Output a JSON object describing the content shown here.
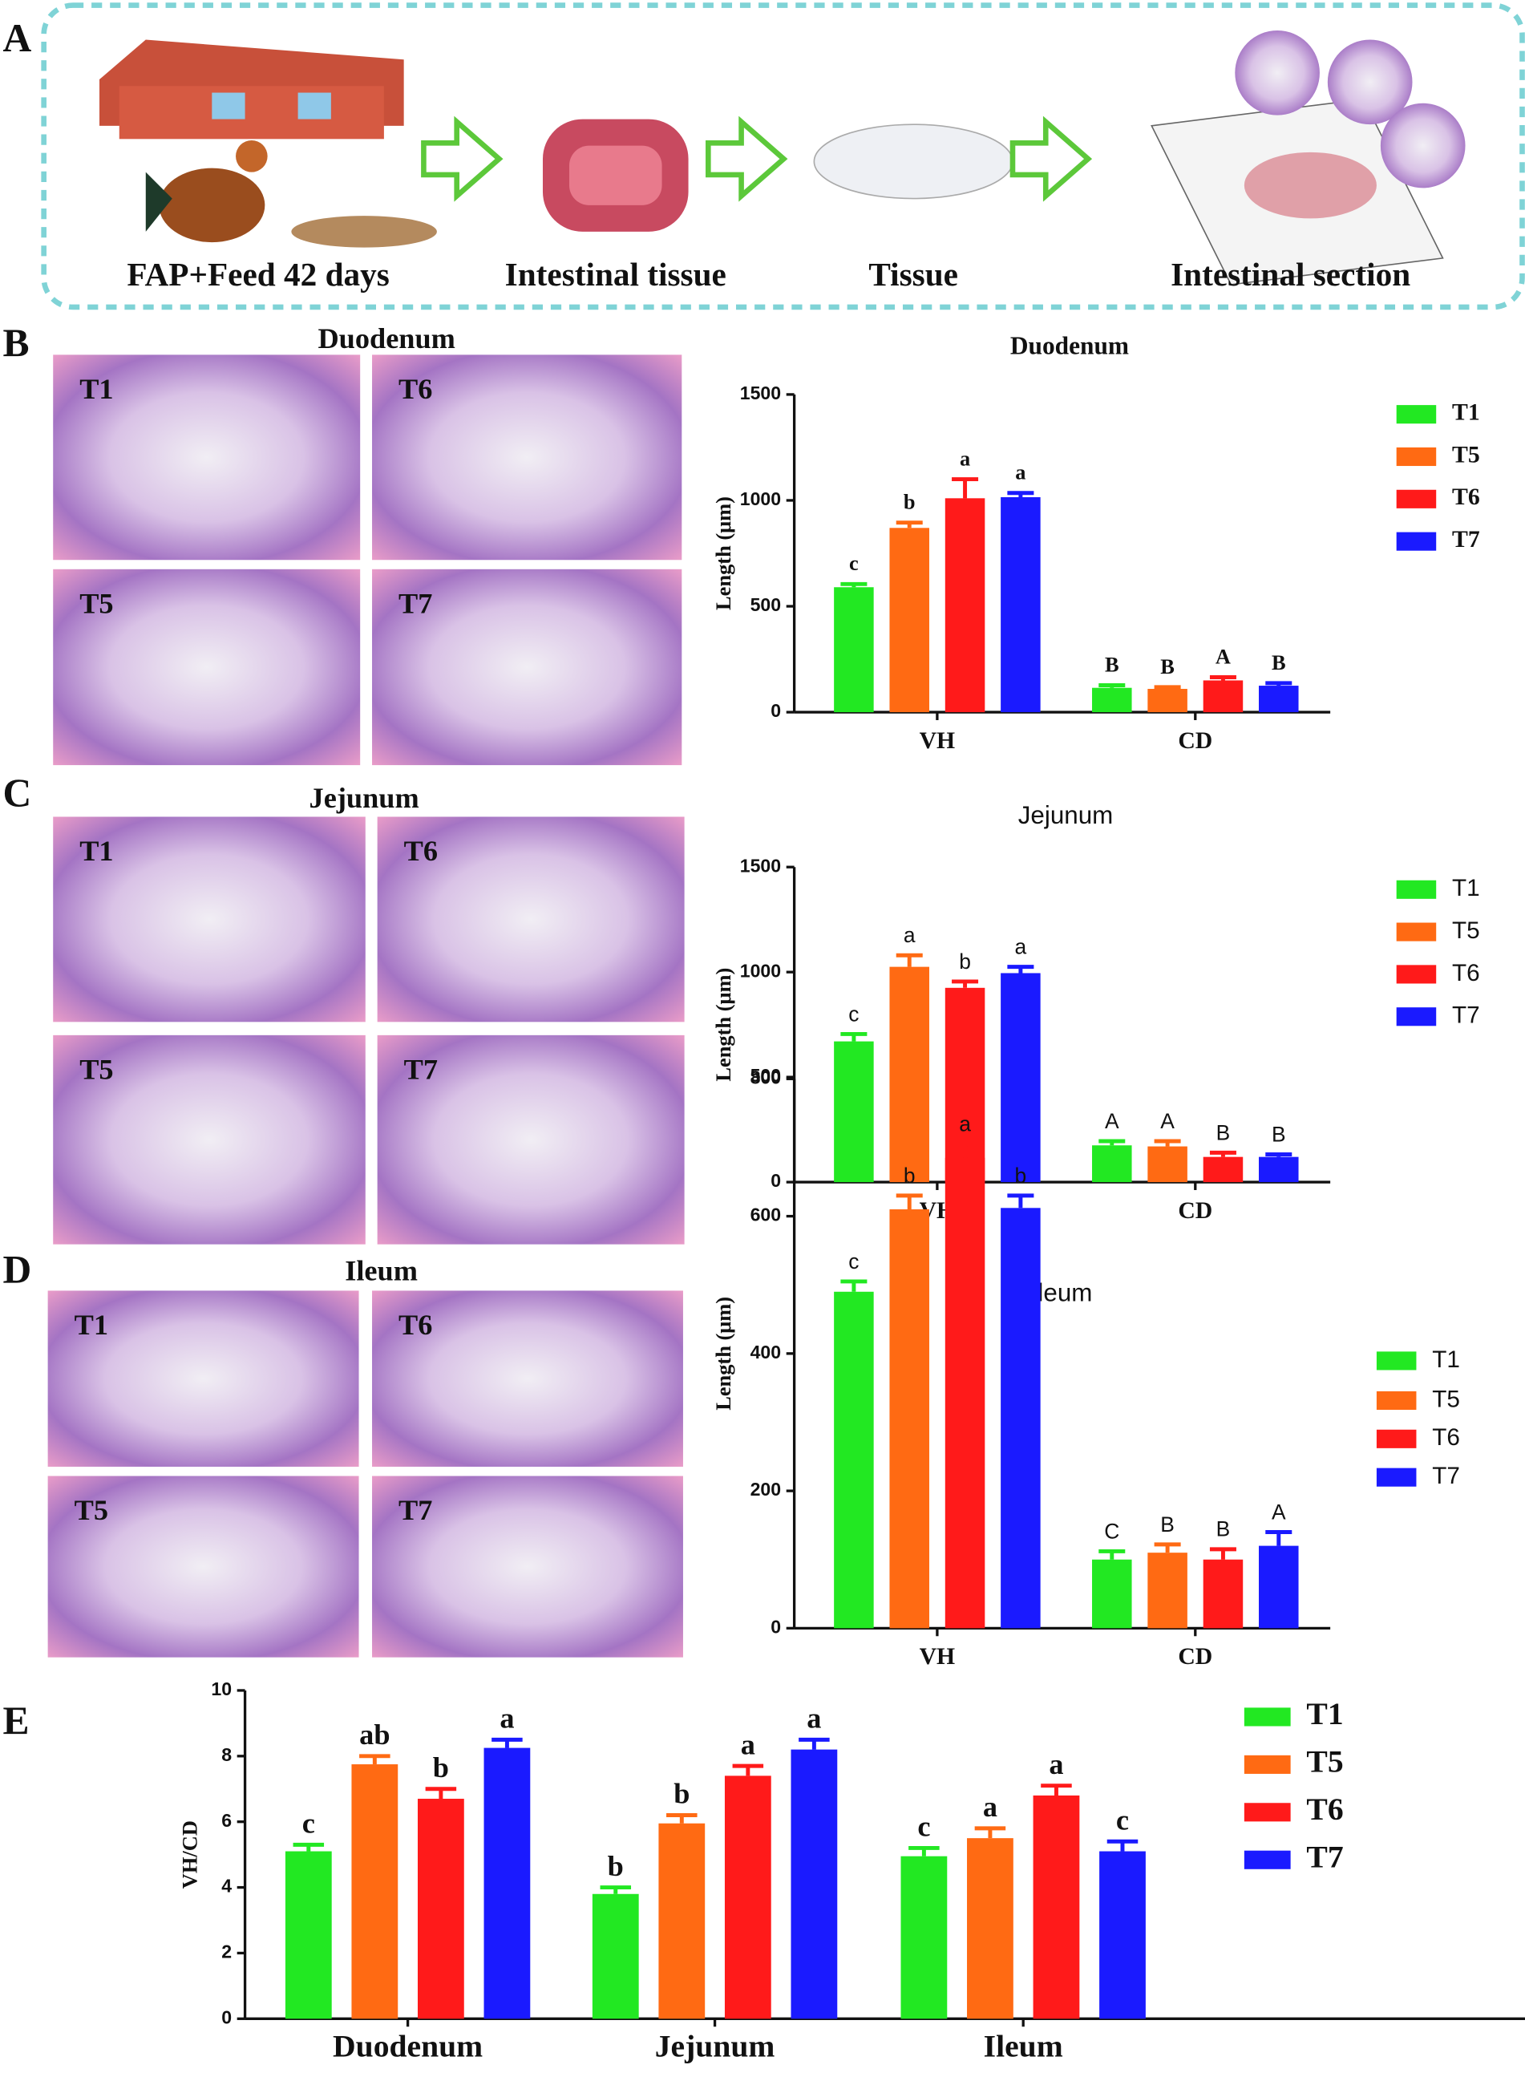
{
  "panels": [
    "A",
    "B",
    "C",
    "D",
    "E"
  ],
  "workflow": {
    "steps": [
      "FAP+Feed 42 days",
      "Intestinal tissue",
      "Tissue",
      "Intestinal section"
    ]
  },
  "micrographs": [
    {
      "title": "Duodenum",
      "labels": [
        "T1",
        "T6",
        "T5",
        "T7"
      ]
    },
    {
      "title": "Jejunum",
      "labels": [
        "T1",
        "T6",
        "T5",
        "T7"
      ]
    },
    {
      "title": "Ileum",
      "labels": [
        "T1",
        "T6",
        "T5",
        "T7"
      ]
    }
  ],
  "chart_data": [
    {
      "type": "bar",
      "title": "Duodenum",
      "ylabel": "Length (μm)",
      "categories": [
        "VH",
        "CD"
      ],
      "ylim": [
        0,
        1500
      ],
      "yticks": [
        0,
        500,
        1000,
        1500
      ],
      "series": [
        {
          "name": "T1",
          "color": "#22e822",
          "values": [
            590,
            115
          ],
          "errors": [
            15,
            12
          ],
          "letters": [
            "c",
            "B"
          ]
        },
        {
          "name": "T5",
          "color": "#ff6a13",
          "values": [
            870,
            110
          ],
          "errors": [
            25,
            8
          ],
          "letters": [
            "b",
            "B"
          ]
        },
        {
          "name": "T6",
          "color": "#ff1a1a",
          "values": [
            1010,
            150
          ],
          "errors": [
            90,
            15
          ],
          "letters": [
            "a",
            "A"
          ]
        },
        {
          "name": "T7",
          "color": "#1a1aff",
          "values": [
            1015,
            125
          ],
          "errors": [
            20,
            12
          ],
          "letters": [
            "a",
            "B"
          ]
        }
      ]
    },
    {
      "type": "bar",
      "title": "Jejunum",
      "ylabel": "Length (μm)",
      "categories": [
        "VH",
        "CD"
      ],
      "ylim": [
        0,
        1500
      ],
      "yticks": [
        0,
        500,
        1000,
        1500
      ],
      "series": [
        {
          "name": "T1",
          "color": "#22e822",
          "values": [
            670,
            175
          ],
          "errors": [
            35,
            20
          ],
          "letters": [
            "c",
            "A"
          ]
        },
        {
          "name": "T5",
          "color": "#ff6a13",
          "values": [
            1025,
            170
          ],
          "errors": [
            55,
            25
          ],
          "letters": [
            "a",
            "A"
          ]
        },
        {
          "name": "T6",
          "color": "#ff1a1a",
          "values": [
            925,
            120
          ],
          "errors": [
            30,
            20
          ],
          "letters": [
            "b",
            "B"
          ]
        },
        {
          "name": "T7",
          "color": "#1a1aff",
          "values": [
            995,
            120
          ],
          "errors": [
            30,
            12
          ],
          "letters": [
            "a",
            "B"
          ]
        }
      ]
    },
    {
      "type": "bar",
      "title": "Ileum",
      "ylabel": "Length (μm)",
      "categories": [
        "VH",
        "CD"
      ],
      "ylim": [
        0,
        800
      ],
      "yticks": [
        0,
        200,
        400,
        600,
        800
      ],
      "series": [
        {
          "name": "T1",
          "color": "#22e822",
          "values": [
            490,
            100
          ],
          "errors": [
            15,
            12
          ],
          "letters": [
            "c",
            "C"
          ]
        },
        {
          "name": "T5",
          "color": "#ff6a13",
          "values": [
            610,
            110
          ],
          "errors": [
            20,
            12
          ],
          "letters": [
            "b",
            "B"
          ]
        },
        {
          "name": "T6",
          "color": "#ff1a1a",
          "values": [
            685,
            100
          ],
          "errors": [
            20,
            15
          ],
          "letters": [
            "a",
            "B"
          ]
        },
        {
          "name": "T7",
          "color": "#1a1aff",
          "values": [
            612,
            120
          ],
          "errors": [
            18,
            20
          ],
          "letters": [
            "b",
            "A"
          ]
        }
      ]
    },
    {
      "type": "bar",
      "ylabel": "VH/CD",
      "categories": [
        "Duodenum",
        "Jejunum",
        "Ileum"
      ],
      "ylim": [
        0,
        10
      ],
      "yticks": [
        0,
        2,
        4,
        6,
        8,
        10
      ],
      "series": [
        {
          "name": "T1",
          "color": "#22e822",
          "values": [
            5.1,
            3.8,
            4.95
          ],
          "errors": [
            0.2,
            0.2,
            0.25
          ],
          "letters": [
            "c",
            "b",
            "c"
          ]
        },
        {
          "name": "T5",
          "color": "#ff6a13",
          "values": [
            7.75,
            5.95,
            5.5
          ],
          "errors": [
            0.25,
            0.25,
            0.3
          ],
          "letters": [
            "ab",
            "b",
            "a"
          ]
        },
        {
          "name": "T6",
          "color": "#ff1a1a",
          "values": [
            6.7,
            7.4,
            6.8
          ],
          "errors": [
            0.3,
            0.3,
            0.3
          ],
          "letters": [
            "b",
            "a",
            "a"
          ]
        },
        {
          "name": "T7",
          "color": "#1a1aff",
          "values": [
            8.25,
            8.2,
            5.1
          ],
          "errors": [
            0.25,
            0.3,
            0.3
          ],
          "letters": [
            "a",
            "a",
            "c"
          ]
        }
      ]
    }
  ]
}
